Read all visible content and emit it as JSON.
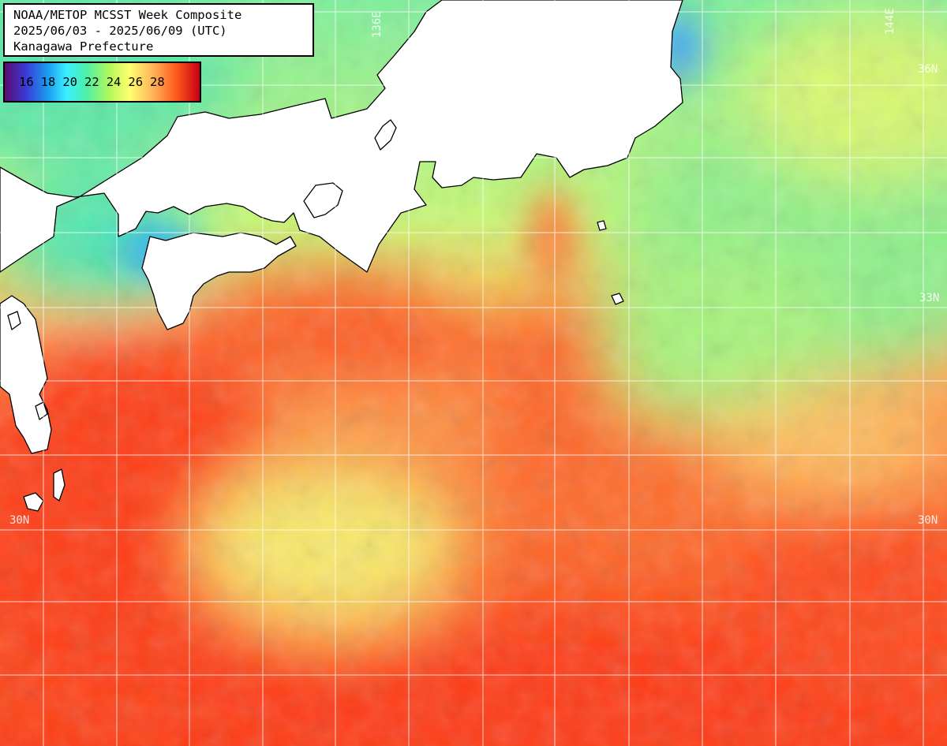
{
  "title": {
    "line1": "NOAA/METOP MCSST Week Composite",
    "line2": "2025/06/03 - 2025/06/09 (UTC)",
    "line3": "Kanagawa Prefecture"
  },
  "legend": {
    "ticks": [
      "16",
      "18",
      "20",
      "22",
      "24",
      "26",
      "28"
    ],
    "colors": [
      "#5a0a6e",
      "#3b3bd6",
      "#1a9cf0",
      "#3cf0ff",
      "#4cf0a6",
      "#b4f85a",
      "#ffff6e",
      "#ffb45a",
      "#ff5a1e",
      "#c80012"
    ]
  },
  "grid_labels": {
    "lat_36": "36N",
    "lat_33": "33N",
    "lat_30_left": "30N",
    "lat_30_right": "30N",
    "lon_136": "136E",
    "lon_144": "144E"
  },
  "colors": {
    "land": "#ffffff",
    "coastline": "#000000",
    "gridline": "#ffffff",
    "sst_warm": "#ff4a1a",
    "sst_cool": "#6ef0a0"
  }
}
